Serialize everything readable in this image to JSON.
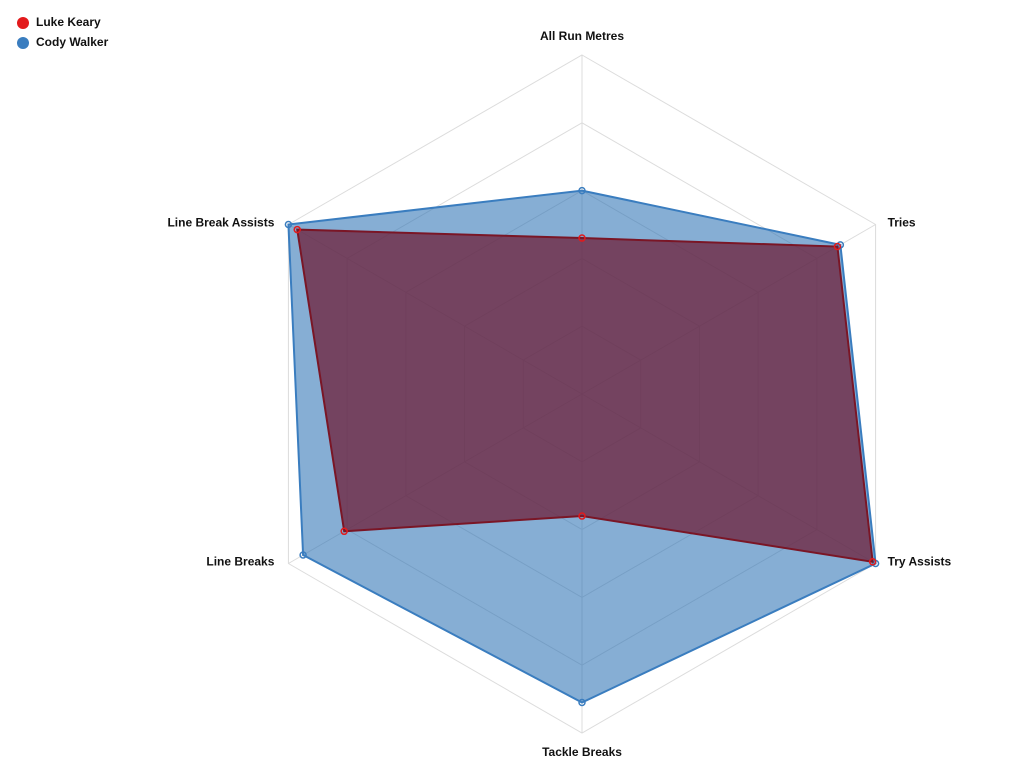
{
  "chart_data": {
    "type": "radar",
    "categories": [
      "All Run Metres",
      "Tries",
      "Try Assists",
      "Tackle Breaks",
      "Line Breaks",
      "Line Break Assists"
    ],
    "series": [
      {
        "name": "Luke Keary",
        "color": "#e31a1c",
        "values": [
          46,
          87,
          99,
          36,
          81,
          97
        ]
      },
      {
        "name": "Cody Walker",
        "color": "#3a7dbf",
        "values": [
          60,
          88,
          100,
          91,
          95,
          100
        ]
      }
    ],
    "rlim": [
      0,
      100
    ],
    "rticks": [
      20,
      40,
      60,
      80,
      100
    ],
    "grid": true,
    "legend": "top-left"
  }
}
